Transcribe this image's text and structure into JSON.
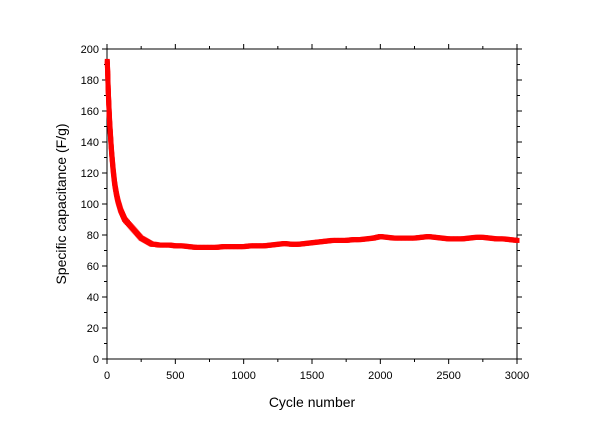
{
  "chart_data": {
    "type": "scatter",
    "xlabel": "Cycle number",
    "ylabel": "Specific capacitance (F/g)",
    "xlim": [
      0,
      3000
    ],
    "ylim": [
      0,
      200
    ],
    "xticks": [
      0,
      500,
      1000,
      1500,
      2000,
      2500,
      3000
    ],
    "yticks": [
      0,
      20,
      40,
      60,
      80,
      100,
      120,
      140,
      160,
      180,
      200
    ],
    "marker": "square",
    "grid": false,
    "colors": {
      "series": "#ff0000",
      "axes": "#000000",
      "background": "#ffffff"
    },
    "series": [
      {
        "points": [
          [
            2,
            192
          ],
          [
            5,
            185
          ],
          [
            8,
            176
          ],
          [
            11,
            169
          ],
          [
            14,
            163
          ],
          [
            17,
            157
          ],
          [
            20,
            152
          ],
          [
            25,
            145
          ],
          [
            30,
            138
          ],
          [
            35,
            132
          ],
          [
            40,
            127
          ],
          [
            45,
            122
          ],
          [
            50,
            118
          ],
          [
            55,
            114
          ],
          [
            60,
            111
          ],
          [
            70,
            106
          ],
          [
            80,
            102
          ],
          [
            90,
            99
          ],
          [
            100,
            96
          ],
          [
            110,
            94
          ],
          [
            120,
            92
          ],
          [
            130,
            90
          ],
          [
            140,
            89
          ],
          [
            150,
            88
          ],
          [
            170,
            86
          ],
          [
            190,
            84
          ],
          [
            210,
            82
          ],
          [
            230,
            80
          ],
          [
            250,
            78
          ],
          [
            270,
            77
          ],
          [
            290,
            76
          ],
          [
            310,
            75
          ],
          [
            330,
            74
          ],
          [
            350,
            74
          ],
          [
            380,
            73.5
          ],
          [
            420,
            73.5
          ],
          [
            460,
            73.5
          ],
          [
            500,
            73
          ],
          [
            550,
            73
          ],
          [
            600,
            72.5
          ],
          [
            650,
            72
          ],
          [
            700,
            72
          ],
          [
            750,
            72
          ],
          [
            800,
            72
          ],
          [
            850,
            72.5
          ],
          [
            900,
            72.5
          ],
          [
            950,
            72.5
          ],
          [
            1000,
            72.5
          ],
          [
            1050,
            73
          ],
          [
            1100,
            73
          ],
          [
            1150,
            73
          ],
          [
            1200,
            73.5
          ],
          [
            1250,
            74
          ],
          [
            1300,
            74.5
          ],
          [
            1350,
            74
          ],
          [
            1400,
            74
          ],
          [
            1450,
            74.5
          ],
          [
            1500,
            75
          ],
          [
            1550,
            75.5
          ],
          [
            1600,
            76
          ],
          [
            1650,
            76.5
          ],
          [
            1700,
            76.5
          ],
          [
            1750,
            76.5
          ],
          [
            1800,
            77
          ],
          [
            1850,
            77
          ],
          [
            1900,
            77.5
          ],
          [
            1950,
            78
          ],
          [
            2000,
            79
          ],
          [
            2050,
            78.5
          ],
          [
            2100,
            78
          ],
          [
            2150,
            78
          ],
          [
            2200,
            78
          ],
          [
            2250,
            78
          ],
          [
            2300,
            78.5
          ],
          [
            2350,
            79
          ],
          [
            2400,
            78.5
          ],
          [
            2450,
            78
          ],
          [
            2500,
            77.5
          ],
          [
            2550,
            77.5
          ],
          [
            2600,
            77.5
          ],
          [
            2650,
            78
          ],
          [
            2700,
            78.5
          ],
          [
            2750,
            78.5
          ],
          [
            2800,
            78
          ],
          [
            2850,
            77.5
          ],
          [
            2900,
            77.5
          ],
          [
            2950,
            77
          ],
          [
            3000,
            76.5
          ]
        ]
      }
    ]
  }
}
